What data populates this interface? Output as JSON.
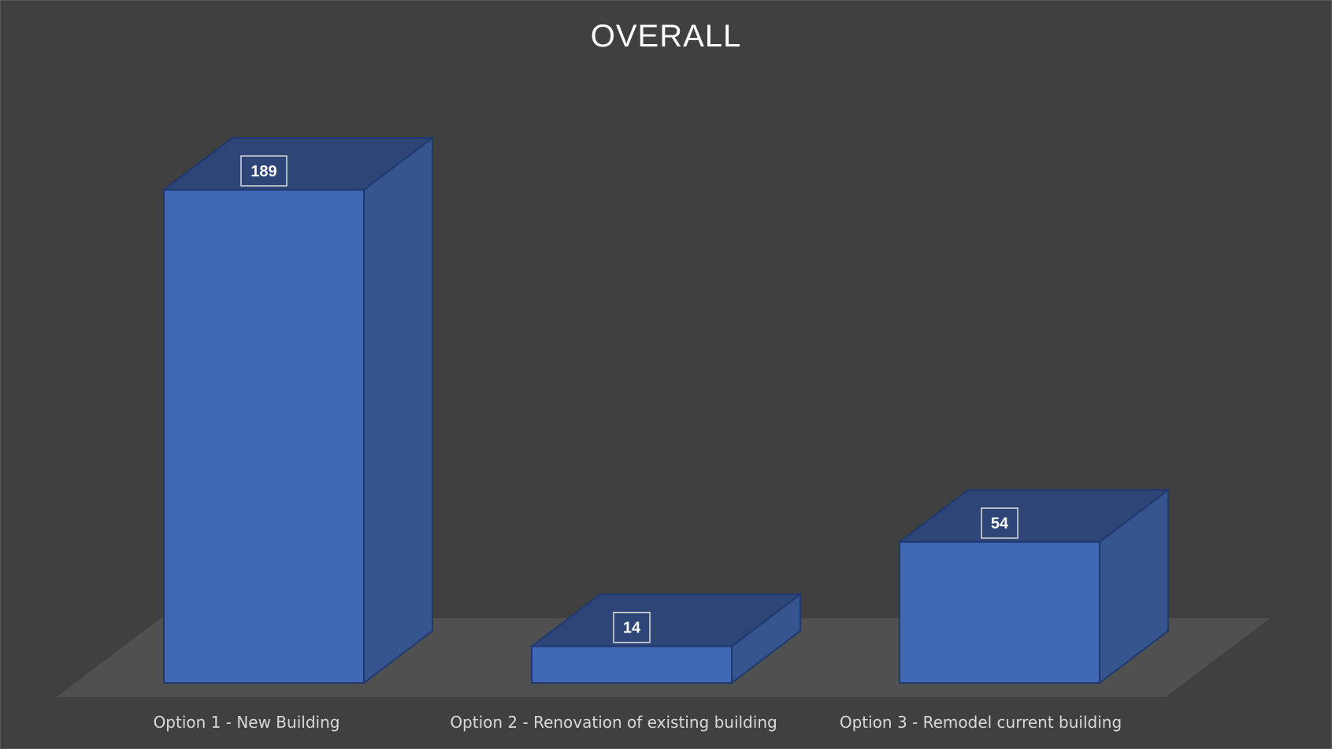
{
  "chart_data": {
    "type": "bar",
    "title": "OVERALL",
    "categories": [
      "Option 1 - New Building",
      "Option 2 - Renovation of existing building",
      "Option 3 - Remodel current building"
    ],
    "values": [
      189,
      14,
      54
    ],
    "data_labels": [
      "189",
      "14",
      "54"
    ],
    "xlabel": "",
    "ylabel": "",
    "ylim": [
      0,
      189
    ],
    "grid": false,
    "legend": "none",
    "style": "3d-column",
    "colors": {
      "background": "#404040",
      "floor": "#505050",
      "bar_front": "#4068b4",
      "bar_top": "#2d4677",
      "bar_side": "#36548e",
      "bar_edge": "#1f3870",
      "title": "#ffffff",
      "category_text": "#d9d9d9",
      "label_text": "#ffffff"
    }
  }
}
